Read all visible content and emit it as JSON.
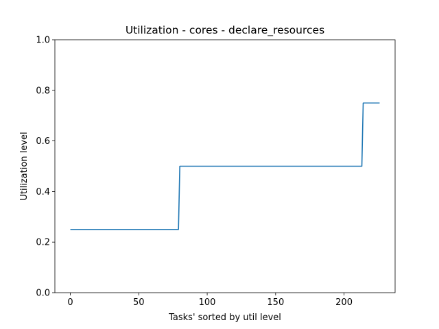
{
  "chart_data": {
    "type": "line",
    "title": "Utilization - cores - declare_resources",
    "xlabel": "Tasks' sorted by util level",
    "ylabel": "Utilization level",
    "xlim": [
      -11.3,
      237.3
    ],
    "ylim": [
      0.0,
      1.0
    ],
    "xticks": [
      0,
      50,
      100,
      150,
      200
    ],
    "yticks": [
      0.0,
      0.2,
      0.4,
      0.6,
      0.8,
      1.0
    ],
    "xtick_labels": [
      "0",
      "50",
      "100",
      "150",
      "200"
    ],
    "ytick_labels": [
      "0.0",
      "0.2",
      "0.4",
      "0.6",
      "0.8",
      "1.0"
    ],
    "grid": false,
    "series": [
      {
        "color": "#1f77b4",
        "x": [
          0,
          79,
          80,
          213,
          214,
          226
        ],
        "y": [
          0.25,
          0.25,
          0.5,
          0.5,
          0.75,
          0.75
        ]
      }
    ]
  }
}
